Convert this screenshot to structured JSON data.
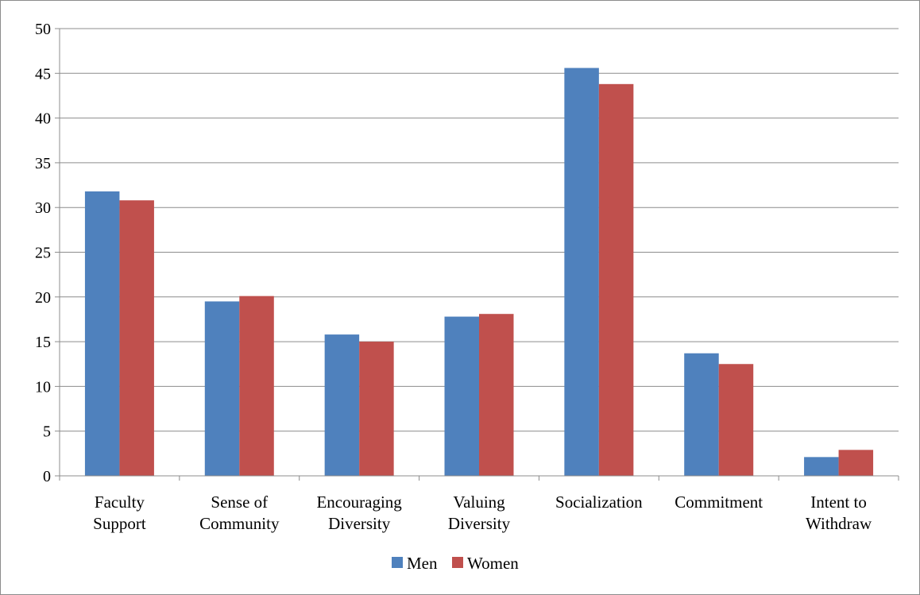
{
  "chart_data": {
    "type": "bar",
    "categories": [
      [
        "Faculty",
        "Support"
      ],
      [
        "Sense of",
        "Community"
      ],
      [
        "Encouraging",
        "Diversity"
      ],
      [
        "Valuing",
        "Diversity"
      ],
      [
        "Socialization"
      ],
      [
        "Commitment"
      ],
      [
        "Intent to",
        "Withdraw"
      ]
    ],
    "series": [
      {
        "name": "Men",
        "color": "#4f81bd",
        "values": [
          31.8,
          19.5,
          15.8,
          17.8,
          45.6,
          13.7,
          2.1
        ]
      },
      {
        "name": "Women",
        "color": "#c0504d",
        "values": [
          30.8,
          20.1,
          15.0,
          18.1,
          43.8,
          12.5,
          2.9
        ]
      }
    ],
    "yticks": [
      "0",
      "5",
      "10",
      "15",
      "20",
      "25",
      "30",
      "35",
      "40",
      "45",
      "50"
    ],
    "ylim": [
      0,
      50
    ],
    "grid": true,
    "legend": "bottom",
    "title": "",
    "xlabel": "",
    "ylabel": ""
  }
}
